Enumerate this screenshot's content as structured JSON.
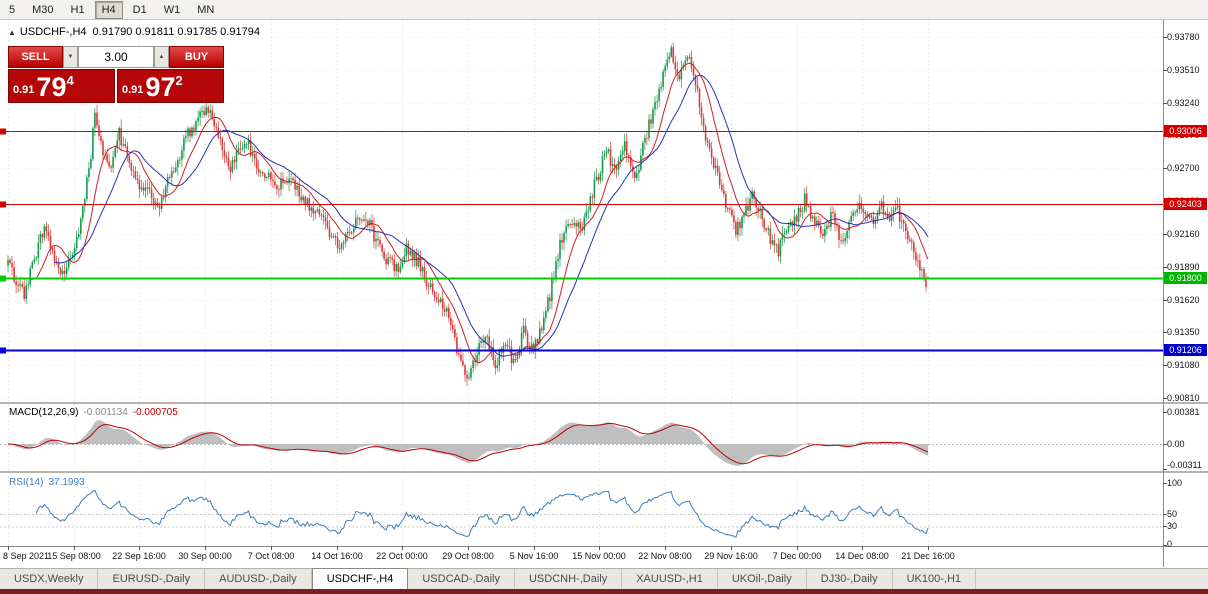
{
  "toolbar": {
    "timeframes": [
      "5",
      "M30",
      "H1",
      "H4",
      "D1",
      "W1",
      "MN"
    ],
    "active": "H4"
  },
  "chart": {
    "title_symbol": "USDCHF-,H4",
    "title_ohlc": "0.91790 0.91811 0.91785 0.91794"
  },
  "icons": {
    "one_click_toggle": "▲",
    "spinner_up": "▲",
    "spinner_down": "▼"
  },
  "trade_panel": {
    "sell_label": "SELL",
    "buy_label": "BUY",
    "volume": "3.00",
    "sell_price": {
      "prefix": "0.91",
      "big": "79",
      "sup": "4"
    },
    "buy_price": {
      "prefix": "0.91",
      "big": "97",
      "sup": "2"
    }
  },
  "price_axis": {
    "labels": [
      "0.93780",
      "0.93510",
      "0.93240",
      "0.92970",
      "0.92700",
      "0.92430",
      "0.92160",
      "0.91890",
      "0.91620",
      "0.91350",
      "0.91080",
      "0.90810"
    ],
    "boxes": [
      {
        "text": "0.93006",
        "price": 0.93006,
        "color": "#d40000"
      },
      {
        "text": "0.92403",
        "price": 0.92403,
        "color": "#d40000"
      },
      {
        "text": "0.91800",
        "price": 0.918,
        "color": "#00b400"
      },
      {
        "text": "0.91206",
        "price": 0.91206,
        "color": "#0000cc"
      }
    ]
  },
  "macd_panel": {
    "name": "MACD(12,26,9)",
    "value1": "-0.001134",
    "value2": "-0.000705",
    "axis": [
      "0.00381",
      "0.00",
      "-0.00311"
    ]
  },
  "rsi_panel": {
    "name": "RSI(14)",
    "value": "37.1993",
    "axis": [
      "100",
      "50",
      "30",
      "0"
    ]
  },
  "time_axis": {
    "labels": [
      "8 Sep 2021",
      "15 Sep 08:00",
      "22 Sep 16:00",
      "30 Sep 00:00",
      "7 Oct 08:00",
      "14 Oct 16:00",
      "22 Oct 00:00",
      "29 Oct 08:00",
      "5 Nov 16:00",
      "15 Nov 00:00",
      "22 Nov 08:00",
      "29 Nov 16:00",
      "7 Dec 00:00",
      "14 Dec 08:00",
      "21 Dec 16:00"
    ]
  },
  "tabs": {
    "active_index": 3,
    "items": [
      "USDX,Weekly",
      "EURUSD-,Daily",
      "AUDUSD-,Daily",
      "USDCHF-,H4",
      "USDCAD-,Daily",
      "USDCNH-,Daily",
      "XAUUSD-,H1",
      "UKOil-,Daily",
      "DJ30-,Daily",
      "UK100-,H1"
    ]
  },
  "chart_data": {
    "type": "candlestick",
    "symbol": "USDCHF-",
    "timeframe": "H4",
    "bars_total": 456,
    "ylim": [
      0.9081,
      0.9378
    ],
    "last_ohlc": {
      "open": 0.9179,
      "high": 0.91811,
      "low": 0.91785,
      "close": 0.91794
    },
    "hlines": [
      {
        "price": 0.93006,
        "color": "#d40000",
        "width": 1
      },
      {
        "price": 0.92403,
        "color": "#d40000",
        "width": 1
      },
      {
        "price": 0.918,
        "color": "#00cc00",
        "width": 2
      },
      {
        "price": 0.91206,
        "color": "#0000dd",
        "width": 2
      }
    ],
    "indicators": {
      "ma_fast_period": 12,
      "ma_fast_color": "#cc2020",
      "ma_slow_period": 24,
      "ma_slow_color": "#2633b8",
      "macd": [
        12,
        26,
        9
      ],
      "macd_current": -0.001134,
      "macd_signal_current": -0.000705,
      "macd_axis_max": 0.00381,
      "macd_axis_min": -0.00311,
      "rsi_period": 14,
      "rsi_current": 37.1993,
      "rsi_levels": [
        50,
        30
      ]
    },
    "candle_up_color": "#169a4d",
    "candle_down_color": "#d93a3a",
    "price_anchors": [
      [
        0,
        0.919
      ],
      [
        8,
        0.9166
      ],
      [
        18,
        0.9222
      ],
      [
        26,
        0.918
      ],
      [
        33,
        0.92
      ],
      [
        41,
        0.928
      ],
      [
        43,
        0.9318
      ],
      [
        46,
        0.929
      ],
      [
        50,
        0.927
      ],
      [
        55,
        0.9298
      ],
      [
        60,
        0.9276
      ],
      [
        65,
        0.9256
      ],
      [
        70,
        0.9248
      ],
      [
        75,
        0.924
      ],
      [
        80,
        0.9262
      ],
      [
        88,
        0.9295
      ],
      [
        95,
        0.9312
      ],
      [
        100,
        0.9318
      ],
      [
        105,
        0.9292
      ],
      [
        110,
        0.9272
      ],
      [
        118,
        0.9292
      ],
      [
        125,
        0.9268
      ],
      [
        132,
        0.9256
      ],
      [
        140,
        0.9262
      ],
      [
        148,
        0.924
      ],
      [
        155,
        0.9228
      ],
      [
        163,
        0.9206
      ],
      [
        170,
        0.9222
      ],
      [
        177,
        0.923
      ],
      [
        185,
        0.92
      ],
      [
        192,
        0.9186
      ],
      [
        197,
        0.9206
      ],
      [
        204,
        0.919
      ],
      [
        210,
        0.9166
      ],
      [
        217,
        0.9155
      ],
      [
        222,
        0.912
      ],
      [
        228,
        0.9098
      ],
      [
        232,
        0.9118
      ],
      [
        236,
        0.9135
      ],
      [
        241,
        0.9108
      ],
      [
        246,
        0.9126
      ],
      [
        250,
        0.911
      ],
      [
        255,
        0.9136
      ],
      [
        258,
        0.9118
      ],
      [
        262,
        0.913
      ],
      [
        268,
        0.9165
      ],
      [
        273,
        0.9206
      ],
      [
        279,
        0.9228
      ],
      [
        284,
        0.922
      ],
      [
        290,
        0.9256
      ],
      [
        296,
        0.9284
      ],
      [
        300,
        0.927
      ],
      [
        305,
        0.9288
      ],
      [
        310,
        0.9262
      ],
      [
        315,
        0.9292
      ],
      [
        320,
        0.9324
      ],
      [
        325,
        0.935
      ],
      [
        328,
        0.937
      ],
      [
        331,
        0.9346
      ],
      [
        335,
        0.9356
      ],
      [
        337,
        0.9362
      ],
      [
        341,
        0.933
      ],
      [
        345,
        0.9296
      ],
      [
        350,
        0.927
      ],
      [
        355,
        0.924
      ],
      [
        360,
        0.9218
      ],
      [
        364,
        0.923
      ],
      [
        368,
        0.9248
      ],
      [
        372,
        0.9236
      ],
      [
        377,
        0.921
      ],
      [
        381,
        0.92
      ],
      [
        385,
        0.9222
      ],
      [
        390,
        0.9228
      ],
      [
        394,
        0.9244
      ],
      [
        399,
        0.9226
      ],
      [
        404,
        0.9218
      ],
      [
        408,
        0.9236
      ],
      [
        412,
        0.9206
      ],
      [
        416,
        0.9222
      ],
      [
        420,
        0.924
      ],
      [
        424,
        0.9232
      ],
      [
        428,
        0.9222
      ],
      [
        432,
        0.924
      ],
      [
        436,
        0.9226
      ],
      [
        440,
        0.9236
      ],
      [
        444,
        0.9218
      ],
      [
        448,
        0.9202
      ],
      [
        451,
        0.9188
      ],
      [
        453,
        0.9176
      ],
      [
        455,
        0.918
      ]
    ]
  }
}
